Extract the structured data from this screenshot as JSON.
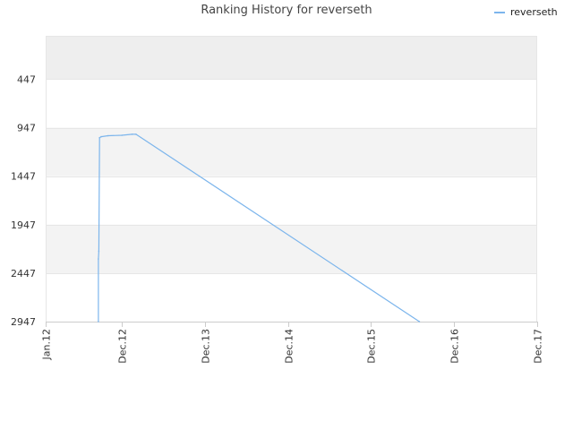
{
  "chart_data": {
    "type": "line",
    "title": "Ranking History for reverseth",
    "xlabel": "",
    "ylabel": "",
    "x_axis_kind": "date",
    "xlim": [
      "2012-01-01",
      "2017-12-01"
    ],
    "ylim": [
      0,
      2947
    ],
    "y_reversed": true,
    "y_ticks": [
      447,
      947,
      1447,
      1947,
      2447,
      2947
    ],
    "x_ticks": [
      {
        "date": "2012-01-01",
        "label": "Jan.12"
      },
      {
        "date": "2012-12-01",
        "label": "Dec.12"
      },
      {
        "date": "2013-12-01",
        "label": "Dec.13"
      },
      {
        "date": "2014-12-01",
        "label": "Dec.14"
      },
      {
        "date": "2015-12-01",
        "label": "Dec.15"
      },
      {
        "date": "2016-12-01",
        "label": "Dec.16"
      },
      {
        "date": "2017-12-01",
        "label": "Dec.17"
      }
    ],
    "grid": true,
    "legend_position": "top-right",
    "colors": {
      "series": "#7cb5ec",
      "band_alt": "#f3f3f3",
      "band_top": "#eeeeee",
      "grid": "#e6e6e6",
      "axis": "#cccccc"
    },
    "series": [
      {
        "name": "reverseth",
        "points": [
          {
            "x": "2012-08-20",
            "y": 2947
          },
          {
            "x": "2012-08-20",
            "y": 2300
          },
          {
            "x": "2012-08-22",
            "y": 2220
          },
          {
            "x": "2012-08-25",
            "y": 1050
          },
          {
            "x": "2012-09-01",
            "y": 1040
          },
          {
            "x": "2012-10-01",
            "y": 1030
          },
          {
            "x": "2012-12-01",
            "y": 1025
          },
          {
            "x": "2013-01-15",
            "y": 1015
          },
          {
            "x": "2013-02-01",
            "y": 1015
          },
          {
            "x": "2016-07-01",
            "y": 2947
          }
        ]
      }
    ]
  }
}
